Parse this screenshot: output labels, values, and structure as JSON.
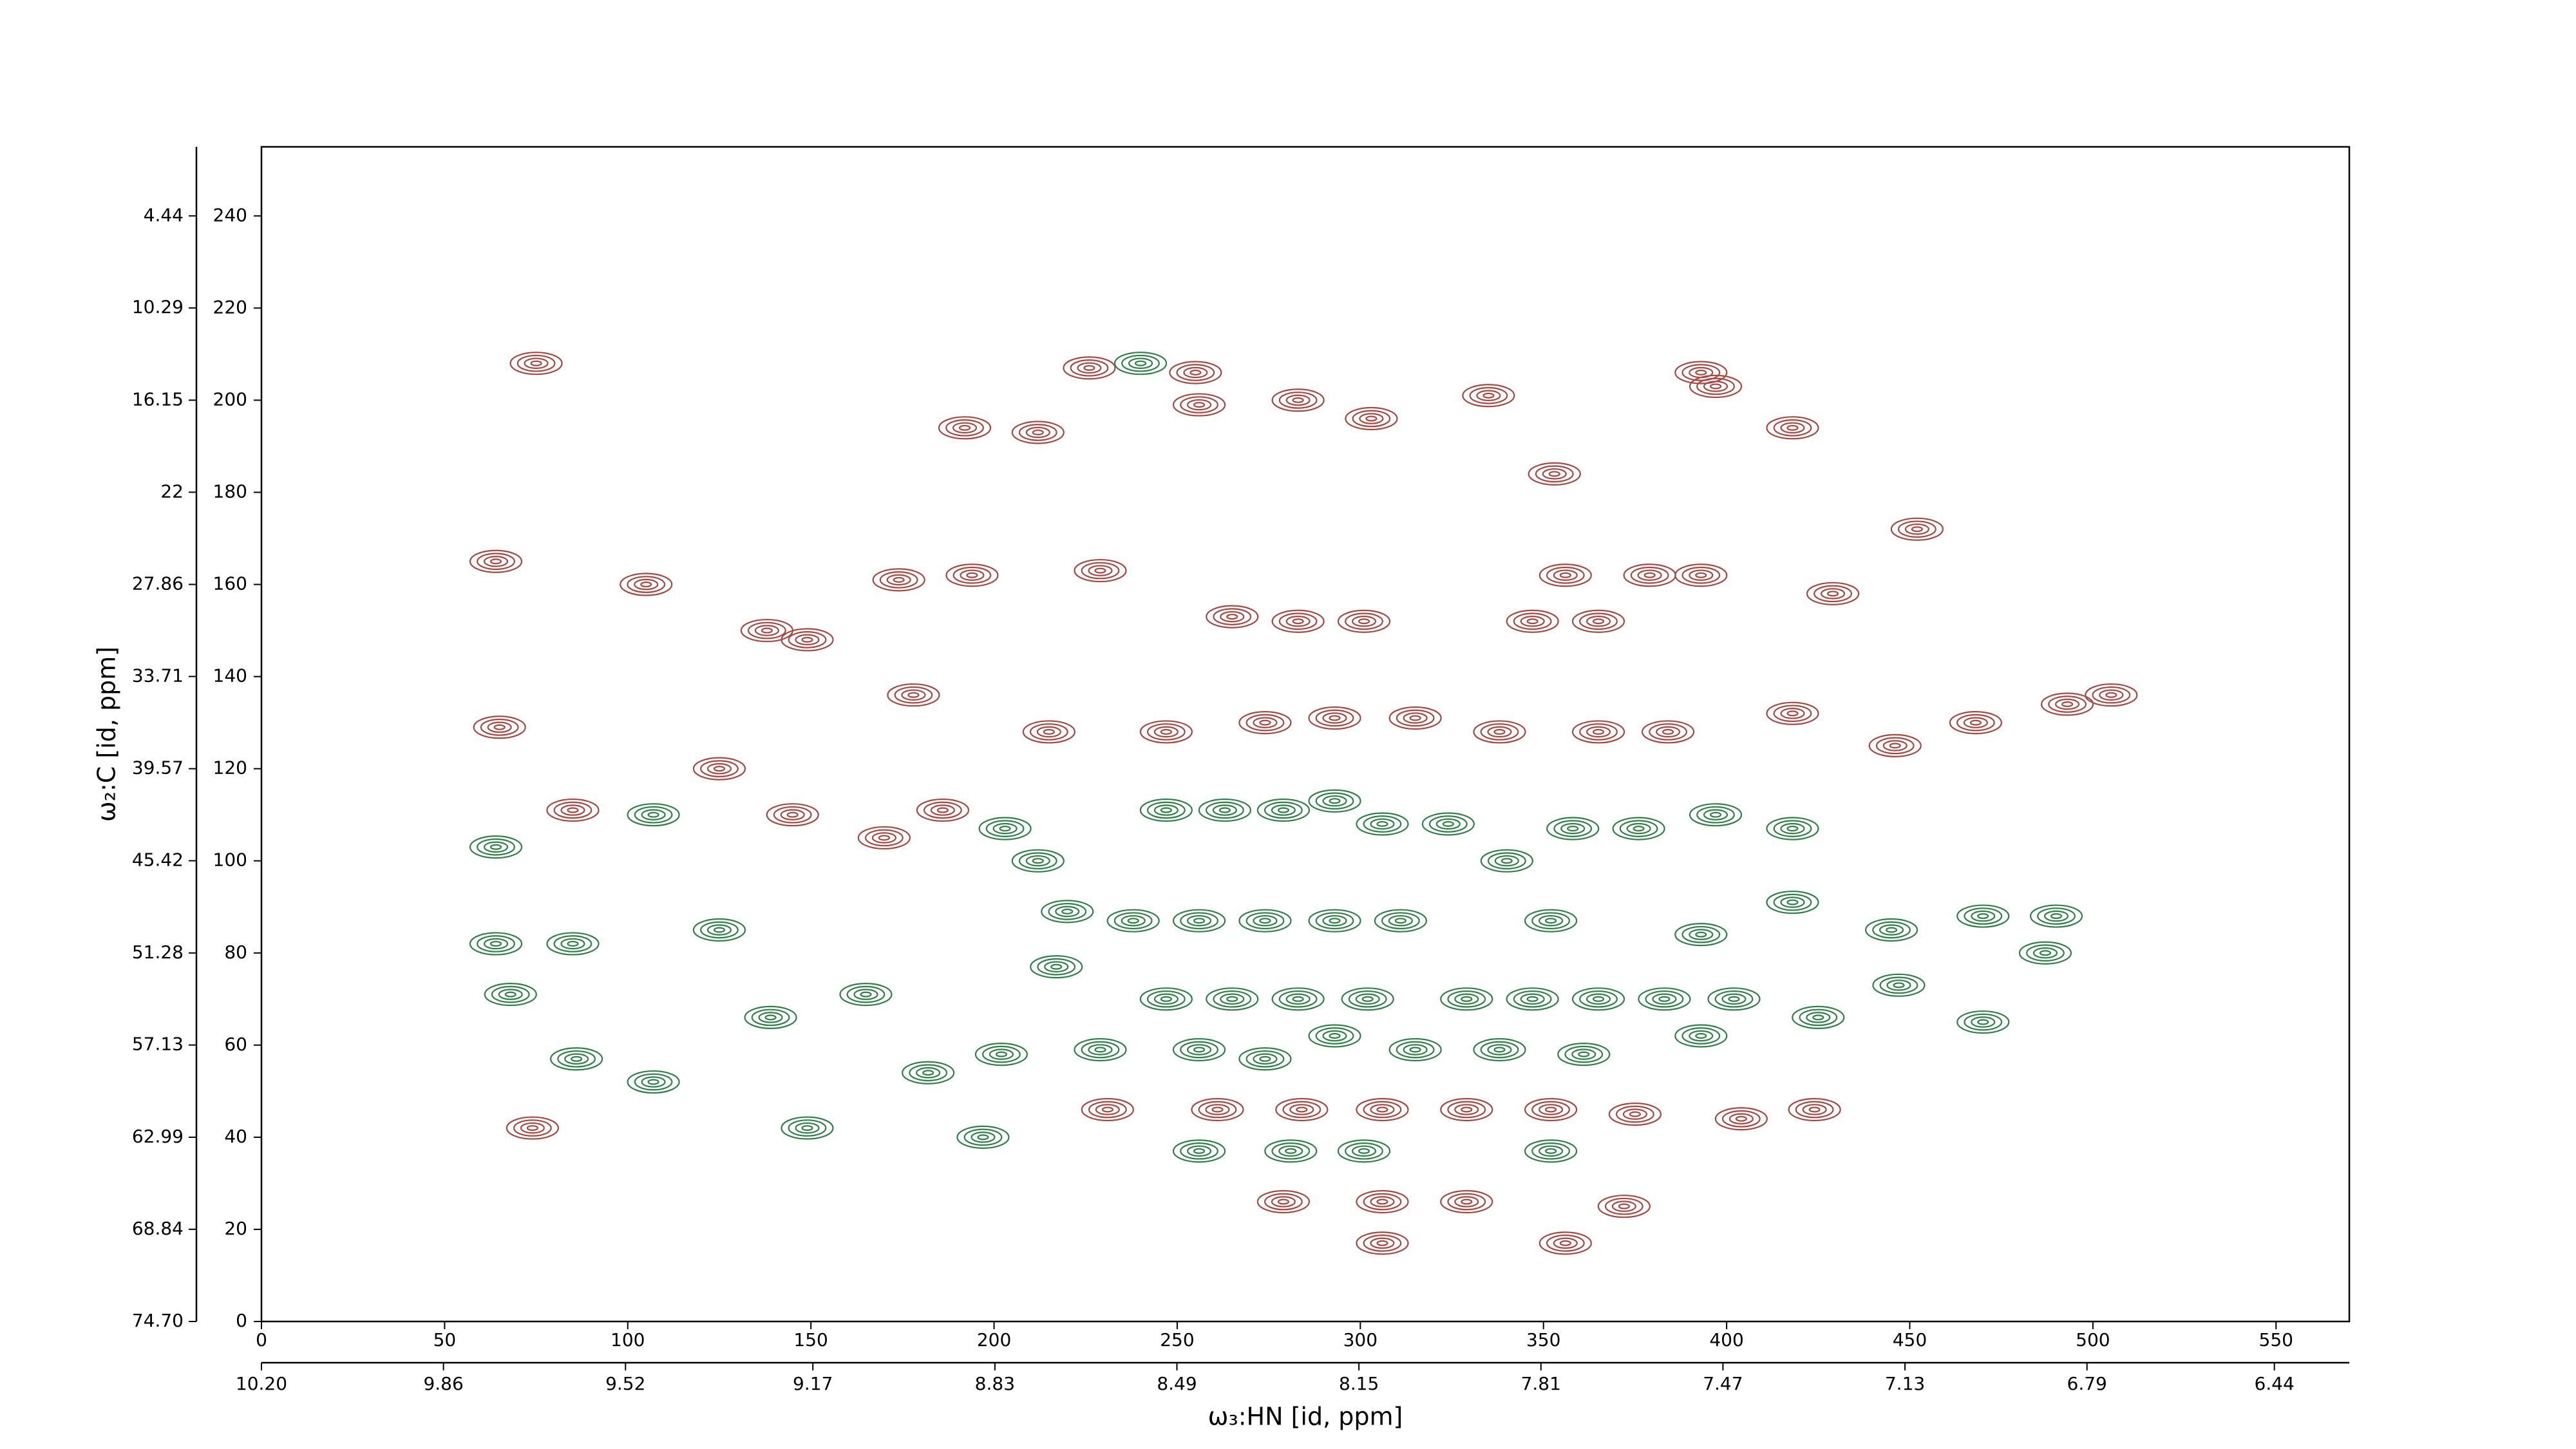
{
  "chart_data": {
    "type": "contour",
    "xlabel": "ω₃:HN [id, ppm]",
    "ylabel": "ω₂:C [id, ppm]",
    "xlim": [
      0,
      570
    ],
    "xticks": [
      0,
      50,
      100,
      150,
      200,
      250,
      300,
      350,
      400,
      450,
      500,
      550
    ],
    "ylim": [
      0,
      255
    ],
    "yticks": [
      0,
      20,
      40,
      60,
      80,
      100,
      120,
      140,
      160,
      180,
      200,
      220,
      240
    ],
    "x2lim": [
      10.2,
      6.3
    ],
    "x2ticks": [
      {
        "value": 10.2,
        "label": "10.20"
      },
      9.86,
      9.52,
      9.17,
      8.83,
      8.49,
      8.15,
      7.81,
      7.47,
      7.13,
      6.79,
      6.44
    ],
    "y2lim": [
      74.7,
      0.05
    ],
    "y2ticks": [
      {
        "value": 74.7,
        "label": "74.70"
      },
      68.84,
      62.99,
      57.13,
      51.28,
      45.42,
      39.57,
      33.71,
      27.86,
      22.0,
      16.15,
      10.29,
      4.44
    ],
    "series": [
      {
        "color": "#a8473f",
        "x": [
          75,
          64,
          65,
          85,
          105,
          125,
          138,
          149,
          178,
          174,
          194,
          192,
          212,
          226,
          229,
          255,
          256,
          283,
          303,
          335,
          353,
          393,
          397,
          418,
          429,
          452,
          468,
          493,
          505,
          446,
          215,
          247,
          265,
          283,
          301,
          347,
          365,
          356,
          379,
          393,
          274,
          293,
          315,
          338,
          365,
          384,
          418,
          231,
          261,
          284,
          306,
          329,
          352,
          375,
          404,
          424,
          279,
          306,
          329,
          356,
          372,
          306,
          145,
          170,
          186,
          74
        ],
        "values": [
          208,
          165,
          129,
          111,
          160,
          120,
          150,
          148,
          136,
          161,
          162,
          194,
          193,
          207,
          163,
          206,
          199,
          200,
          196,
          201,
          184,
          206,
          203,
          194,
          158,
          172,
          130,
          134,
          136,
          125,
          128,
          128,
          153,
          152,
          152,
          152,
          152,
          162,
          162,
          162,
          130,
          131,
          131,
          128,
          128,
          128,
          132,
          46,
          46,
          46,
          46,
          46,
          46,
          45,
          44,
          46,
          26,
          26,
          26,
          17,
          25,
          17,
          110,
          105,
          111,
          42
        ]
      },
      {
        "color": "#2f8046",
        "x": [
          64,
          64,
          68,
          86,
          85,
          107,
          107,
          125,
          139,
          149,
          165,
          182,
          197,
          203,
          212,
          202,
          220,
          217,
          240,
          247,
          263,
          279,
          293,
          306,
          324,
          340,
          358,
          376,
          397,
          418,
          418,
          445,
          470,
          490,
          487,
          447,
          470,
          238,
          256,
          274,
          293,
          311,
          247,
          265,
          283,
          302,
          329,
          347,
          365,
          383,
          402,
          229,
          256,
          274,
          293,
          315,
          338,
          361,
          393,
          425,
          256,
          281,
          301,
          352,
          352,
          393
        ],
        "values": [
          103,
          82,
          71,
          57,
          82,
          110,
          52,
          85,
          66,
          42,
          71,
          54,
          40,
          107,
          100,
          58,
          89,
          77,
          208,
          111,
          111,
          111,
          113,
          108,
          108,
          100,
          107,
          107,
          110,
          107,
          91,
          85,
          88,
          88,
          80,
          73,
          65,
          87,
          87,
          87,
          87,
          87,
          70,
          70,
          70,
          70,
          70,
          70,
          70,
          70,
          70,
          59,
          59,
          57,
          62,
          59,
          59,
          58,
          62,
          66,
          37,
          37,
          37,
          37,
          87,
          84
        ]
      }
    ]
  }
}
